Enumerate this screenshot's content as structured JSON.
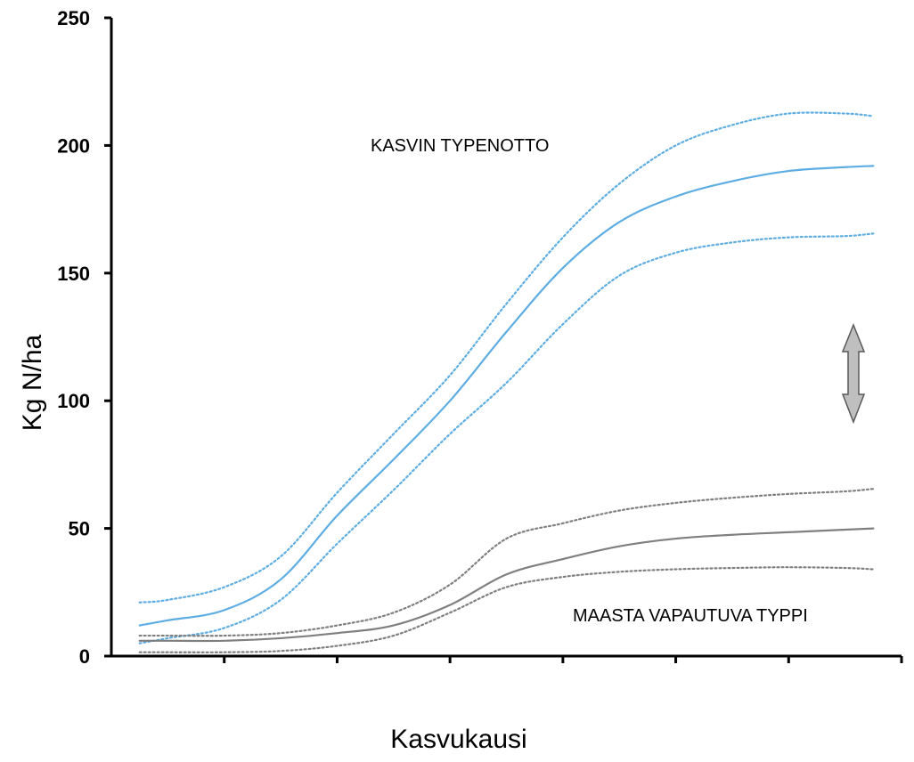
{
  "chart_data": {
    "type": "line",
    "title": "",
    "xlabel": "Kasvukausi",
    "ylabel": "Kg N/ha",
    "ylim": [
      0,
      250
    ],
    "yticks": [
      0,
      50,
      100,
      150,
      200,
      250
    ],
    "x_tick_count": 7,
    "grid": false,
    "colors": {
      "uptake": "#5DADE2",
      "soil": "#7F7F7F"
    },
    "annotations": [
      {
        "id": "uptake",
        "text": "KASVIN TYPENOTTO"
      },
      {
        "id": "soil",
        "text": "MAASTA VAPAUTUVA TYPPI"
      }
    ],
    "x": [
      0.25,
      0.5,
      1,
      1.5,
      2,
      2.5,
      3,
      3.5,
      4,
      4.5,
      5,
      5.5,
      6,
      6.5,
      6.75
    ],
    "series": [
      {
        "group": "uptake",
        "style": "solid",
        "values": [
          12,
          14,
          18,
          30,
          55,
          77,
          100,
          127,
          152,
          170,
          180,
          186,
          190,
          191.5,
          192
        ]
      },
      {
        "group": "uptake",
        "style": "dotted",
        "values": [
          21,
          22,
          27,
          39,
          64,
          87,
          110,
          138,
          164,
          185,
          200,
          208,
          212.5,
          212.5,
          211.5
        ]
      },
      {
        "group": "uptake",
        "style": "dotted",
        "values": [
          5,
          7,
          11,
          22,
          44,
          65,
          87,
          107,
          130,
          149,
          158,
          162,
          164,
          164.5,
          165.5
        ]
      },
      {
        "group": "soil",
        "style": "solid",
        "values": [
          6,
          6,
          6,
          7,
          9,
          12,
          20,
          32,
          38,
          43,
          46,
          47.5,
          48.5,
          49.5,
          50
        ]
      },
      {
        "group": "soil",
        "style": "dotted",
        "values": [
          8,
          8,
          8,
          9,
          12,
          17,
          28,
          46,
          52,
          57,
          60,
          62,
          63.5,
          64.5,
          65.5
        ]
      },
      {
        "group": "soil",
        "style": "dotted",
        "values": [
          1.5,
          1.5,
          1.5,
          2,
          4,
          8,
          17,
          27,
          31,
          33,
          34,
          34.5,
          34.8,
          34.5,
          34
        ]
      }
    ]
  }
}
